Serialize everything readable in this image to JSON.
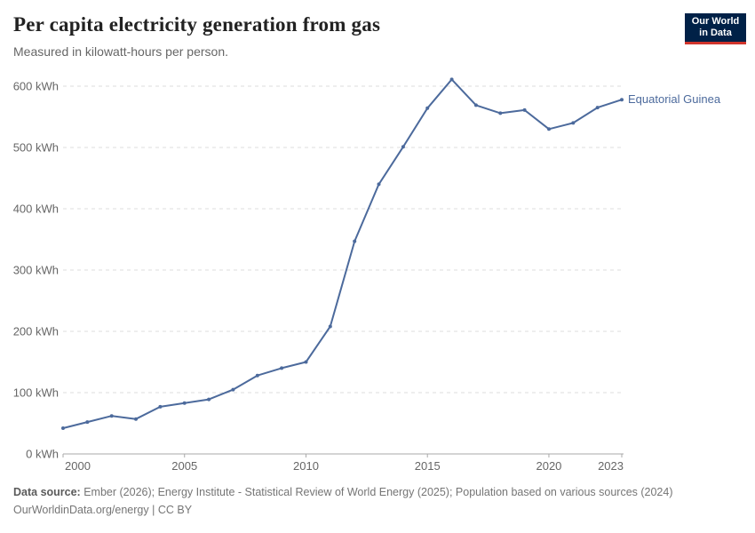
{
  "header": {
    "title": "Per capita electricity generation from gas",
    "subtitle": "Measured in kilowatt-hours per person."
  },
  "logo": {
    "line1": "Our World",
    "line2": "in Data",
    "bg_color": "#002147",
    "accent_color": "#D0342C"
  },
  "chart_data": {
    "type": "line",
    "title": "Per capita electricity generation from gas",
    "subtitle": "Measured in kilowatt-hours per person.",
    "x": [
      2000,
      2001,
      2002,
      2003,
      2004,
      2005,
      2006,
      2007,
      2008,
      2009,
      2010,
      2011,
      2012,
      2013,
      2014,
      2015,
      2016,
      2017,
      2018,
      2019,
      2020,
      2021,
      2022,
      2023
    ],
    "series": [
      {
        "name": "Equatorial Guinea",
        "color": "#4C6A9C",
        "values": [
          42,
          52,
          62,
          57,
          77,
          83,
          89,
          105,
          128,
          140,
          150,
          208,
          347,
          440,
          501,
          564,
          611,
          569,
          556,
          561,
          530,
          540,
          565,
          578
        ]
      }
    ],
    "xlim": [
      2000,
      2023
    ],
    "ylim": [
      0,
      600
    ],
    "xticks": [
      2000,
      2005,
      2010,
      2015,
      2020,
      2023
    ],
    "yticks": [
      0,
      100,
      200,
      300,
      400,
      500,
      600
    ],
    "y_tick_suffix": " kWh",
    "xlabel": "",
    "ylabel": "",
    "grid": "horizontal-dashed",
    "legend_position": "end-of-line-label"
  },
  "footer": {
    "data_source_label": "Data source:",
    "data_source": " Ember (2026); Energy Institute - Statistical Review of World Energy (2025); Population based on various sources (2024)",
    "link": "OurWorldinData.org/energy",
    "separator": " | ",
    "license": "CC BY"
  },
  "colors": {
    "line": "#4C6A9C",
    "grid": "#DCDCDC",
    "axis": "#A9A9A9",
    "tick_label": "#666666",
    "series_label": "#4C6A9C",
    "title": "#222222",
    "subtitle": "#666666",
    "footer": "#757575"
  }
}
